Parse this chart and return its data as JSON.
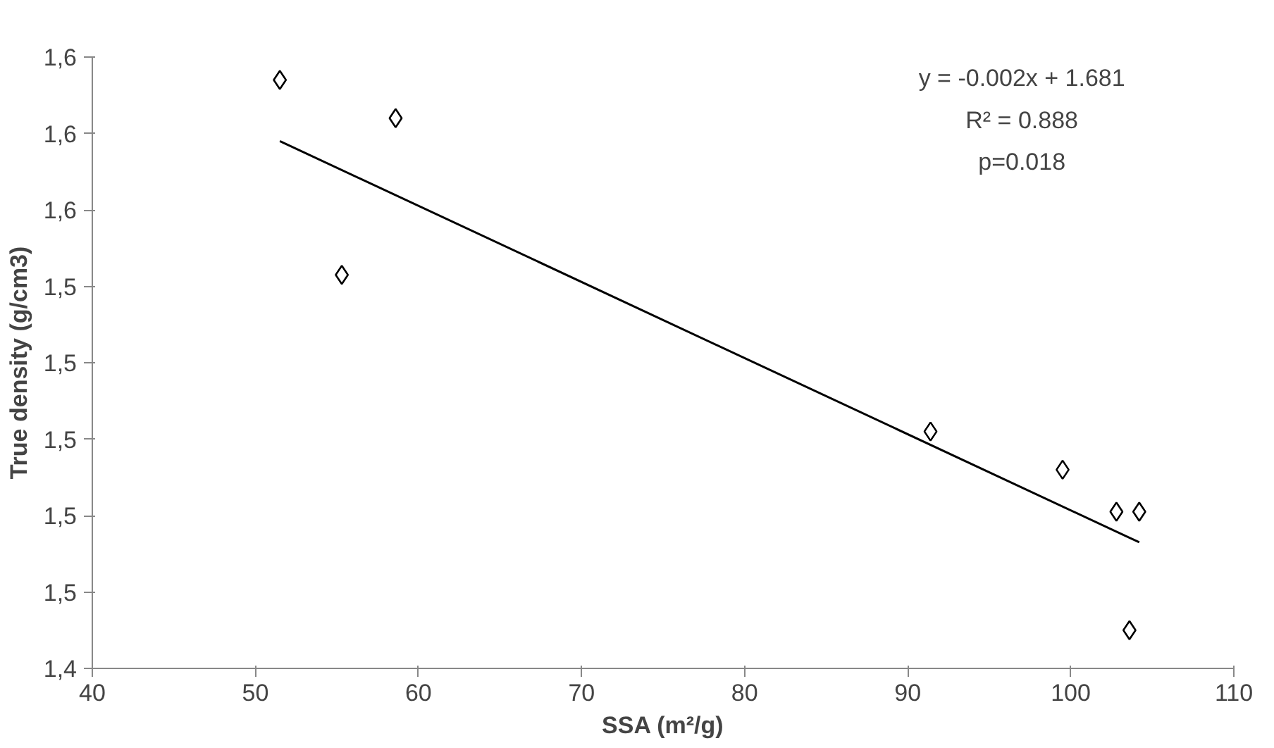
{
  "chart_data": {
    "type": "scatter",
    "xlabel": "SSA (m²/g)",
    "ylabel": "True density (g/cm3)",
    "xlim": [
      40,
      110
    ],
    "xticks": [
      40,
      50,
      60,
      70,
      80,
      90,
      100,
      110
    ],
    "ylim": [
      1.44,
      1.6
    ],
    "yticks": [
      {
        "value": 1.44,
        "label": "1,4"
      },
      {
        "value": 1.46,
        "label": "1,5"
      },
      {
        "value": 1.48,
        "label": "1,5"
      },
      {
        "value": 1.5,
        "label": "1,5"
      },
      {
        "value": 1.52,
        "label": "1,5"
      },
      {
        "value": 1.54,
        "label": "1,5"
      },
      {
        "value": 1.56,
        "label": "1,6"
      },
      {
        "value": 1.58,
        "label": "1,6"
      },
      {
        "value": 1.6,
        "label": "1,6"
      }
    ],
    "grid": false,
    "series": [
      {
        "marker": "diamond",
        "color": "#000000",
        "x": [
          51.5,
          55.3,
          58.6,
          91.4,
          99.5,
          102.8,
          104.2,
          103.6
        ],
        "values": [
          1.594,
          1.543,
          1.584,
          1.502,
          1.492,
          1.481,
          1.481,
          1.45
        ]
      },
      {
        "type": "line",
        "color": "#000000",
        "x": [
          51.5,
          104.2
        ],
        "values": [
          1.578,
          1.473
        ]
      }
    ],
    "annotations": [
      "y = -0.002x + 1.681",
      "R² = 0.888",
      "p=0.018"
    ]
  }
}
